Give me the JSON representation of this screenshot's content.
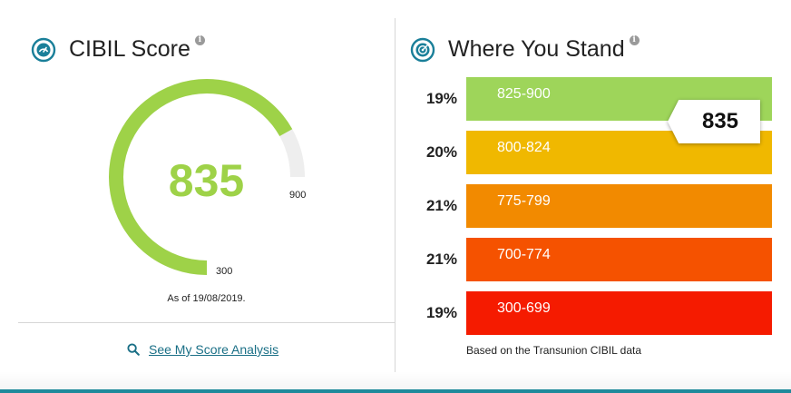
{
  "cibil_panel": {
    "title": "CIBIL Score",
    "score": "835",
    "max_label": "900",
    "min_label": "300",
    "as_of": "As of 19/08/2019.",
    "gauge": {
      "min": 300,
      "max": 900,
      "value": 835
    },
    "analysis_link": "See My Score Analysis"
  },
  "stand_panel": {
    "title": "Where You Stand",
    "marker_score": "835",
    "footnote": "Based on the Transunion CIBIL data",
    "ranges": [
      {
        "percent": "19%",
        "range": "825-900",
        "color": "#9ed55a"
      },
      {
        "percent": "20%",
        "range": "800-824",
        "color": "#f0b800"
      },
      {
        "percent": "21%",
        "range": "775-799",
        "color": "#f28a00"
      },
      {
        "percent": "21%",
        "range": "700-774",
        "color": "#f55200"
      },
      {
        "percent": "19%",
        "range": "300-699",
        "color": "#f51b00"
      }
    ]
  },
  "colors": {
    "gauge_fill": "#9ed248",
    "gauge_track": "#eeeeee",
    "accent": "#1f8a9b",
    "link": "#1a6f86"
  },
  "icons": {
    "cibil": "speedometer-icon",
    "stand": "target-icon",
    "info": "info-icon",
    "link": "search-icon"
  }
}
